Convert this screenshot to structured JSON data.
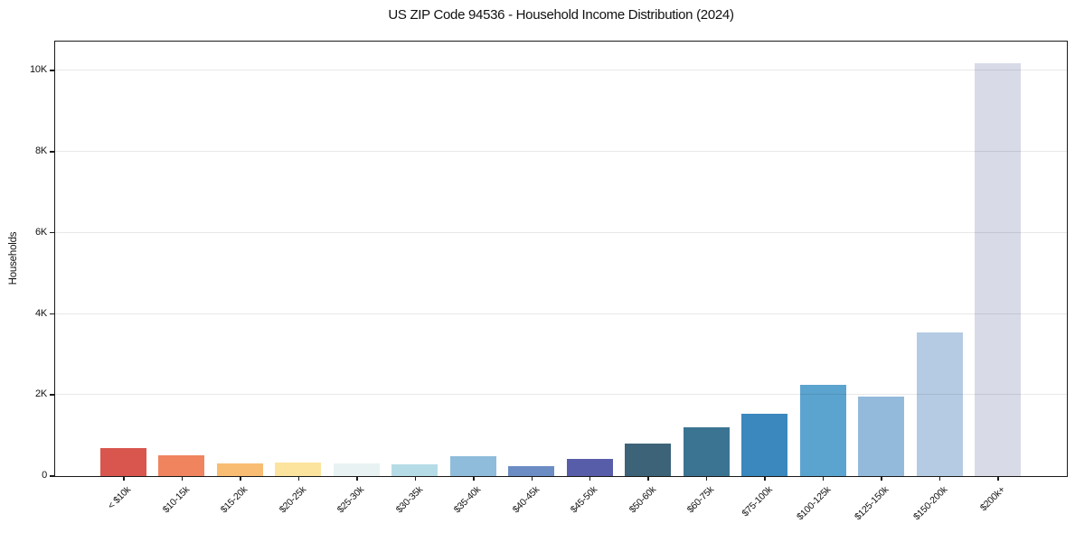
{
  "chart_data": {
    "type": "bar",
    "title": "US ZIP Code 94536 - Household Income Distribution (2024)",
    "xlabel": "",
    "ylabel": "Households",
    "categories": [
      "< $10k",
      "$10-15k",
      "$15-20k",
      "$20-25k",
      "$25-30k",
      "$30-35k",
      "$35-40k",
      "$40-45k",
      "$45-50k",
      "$50-60k",
      "$60-75k",
      "$75-100k",
      "$100-125k",
      "$125-150k",
      "$150-200k",
      "$200k+"
    ],
    "values": [
      690,
      520,
      315,
      340,
      310,
      295,
      480,
      250,
      425,
      795,
      1210,
      1530,
      2260,
      1970,
      3540,
      10180
    ],
    "bar_colors": [
      "#d8564e",
      "#f0845e",
      "#f8bd72",
      "#fce49e",
      "#e8f2f2",
      "#b5dce6",
      "#8fbcda",
      "#6c8cc4",
      "#575da9",
      "#3d6379",
      "#3b7492",
      "#3a88bd",
      "#5ba4cf",
      "#94badb",
      "#b4cbe3",
      "#d8dae8"
    ],
    "ylim": [
      0,
      10700
    ],
    "yticks": [
      {
        "value": 0,
        "label": "0"
      },
      {
        "value": 2000,
        "label": "2K"
      },
      {
        "value": 4000,
        "label": "4K"
      },
      {
        "value": 6000,
        "label": "6K"
      },
      {
        "value": 8000,
        "label": "8K"
      },
      {
        "value": 10000,
        "label": "10K"
      }
    ],
    "grid": "horizontal",
    "legend": "none",
    "colors": {
      "background": "#ffffff",
      "spine": "#1a1a1a",
      "gridline": "rgba(0,0,0,0.09)",
      "text": "#111111"
    }
  }
}
